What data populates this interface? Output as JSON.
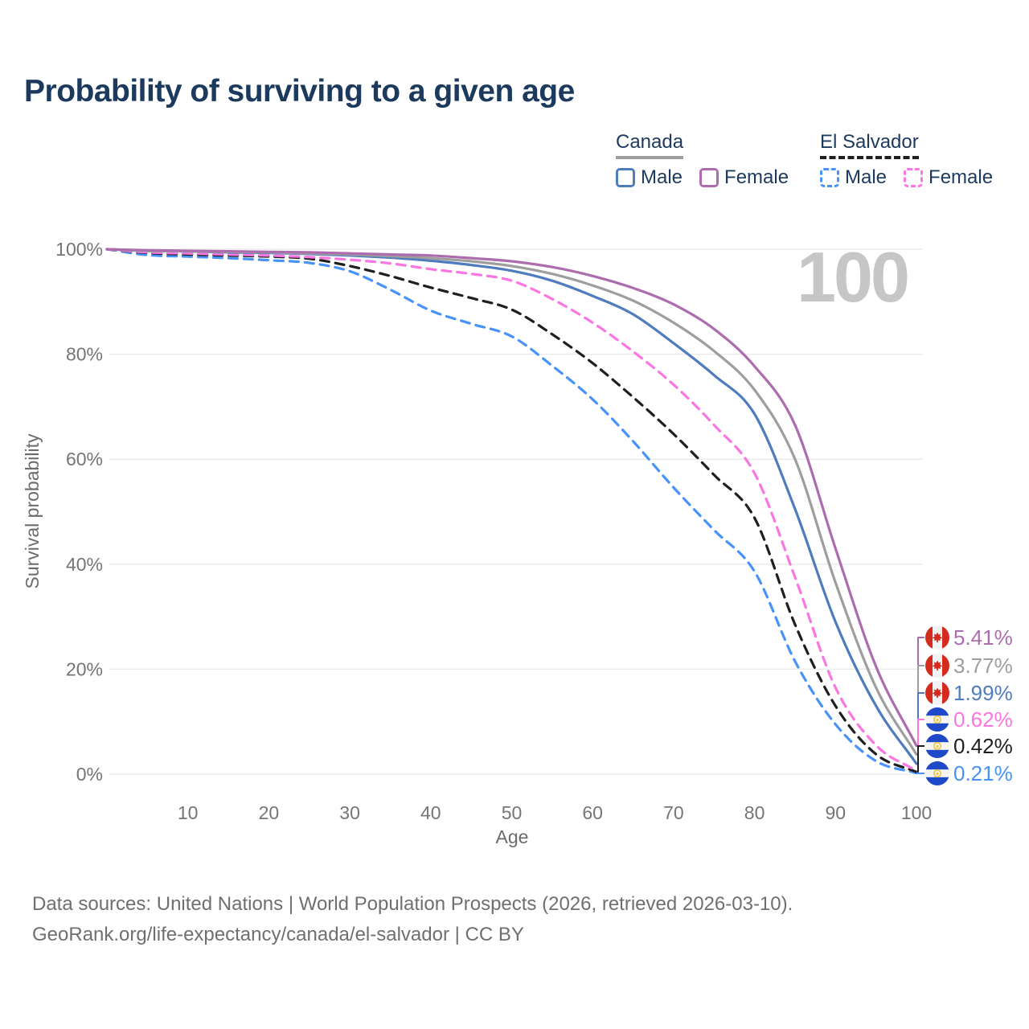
{
  "title": "Probability of surviving to a given age",
  "watermark": "100",
  "legend": {
    "canada": {
      "title": "Canada",
      "male_label": "Male",
      "female_label": "Female"
    },
    "el_salvador": {
      "title": "El Salvador",
      "male_label": "Male",
      "female_label": "Female"
    }
  },
  "axes": {
    "x_label": "Age",
    "y_label": "Survival probability",
    "x_ticks": [
      "10",
      "20",
      "30",
      "40",
      "50",
      "60",
      "70",
      "80",
      "90",
      "100"
    ],
    "y_ticks": [
      "0%",
      "20%",
      "40%",
      "60%",
      "80%",
      "100%"
    ],
    "y_tick_values": [
      0,
      20,
      40,
      60,
      80,
      100
    ]
  },
  "chart_data": {
    "type": "line",
    "title": "Probability of surviving to a given age",
    "xlabel": "Age",
    "ylabel": "Survival probability",
    "xlim": [
      0,
      100
    ],
    "ylim": [
      0,
      100
    ],
    "grid": true,
    "legend_position": "top-right",
    "x": [
      0,
      5,
      10,
      15,
      20,
      25,
      30,
      35,
      40,
      45,
      50,
      55,
      60,
      65,
      70,
      75,
      80,
      85,
      90,
      95,
      100
    ],
    "series": [
      {
        "id": "canada-female",
        "name": "Canada Female",
        "country": "Canada",
        "sex": "Female",
        "color": "#AD6CAE",
        "line_style": "solid",
        "flag_icon": "canada-flag-icon",
        "end_label": "5.41%",
        "values": [
          100,
          99.8,
          99.7,
          99.6,
          99.5,
          99.4,
          99.2,
          99.0,
          98.8,
          98.3,
          97.7,
          96.6,
          94.9,
          92.6,
          89.5,
          84.8,
          77.7,
          66.5,
          43.0,
          20.5,
          5.41
        ]
      },
      {
        "id": "canada-total",
        "name": "Canada Both sexes",
        "country": "Canada",
        "sex": "Both",
        "color": "#9E9E9E",
        "line_style": "solid",
        "flag_icon": "canada-flag-icon",
        "end_label": "3.77%",
        "values": [
          100,
          99.7,
          99.6,
          99.5,
          99.4,
          99.2,
          99.0,
          98.7,
          98.3,
          97.7,
          96.8,
          95.3,
          93.1,
          90.2,
          86.0,
          80.6,
          73.2,
          60.0,
          36.5,
          16.5,
          3.77
        ]
      },
      {
        "id": "canada-male",
        "name": "Canada Male",
        "country": "Canada",
        "sex": "Male",
        "color": "#4F7CBE",
        "line_style": "solid",
        "flag_icon": "canada-flag-icon",
        "end_label": "1.99%",
        "values": [
          100,
          99.7,
          99.6,
          99.4,
          99.3,
          99.1,
          98.8,
          98.4,
          97.8,
          97.0,
          95.9,
          94.0,
          91.1,
          87.6,
          82.1,
          76.0,
          68.6,
          50.5,
          29.0,
          13.0,
          1.99
        ]
      },
      {
        "id": "el-salvador-female",
        "name": "El Salvador Female",
        "country": "El Salvador",
        "sex": "Female",
        "color": "#FB76E1",
        "line_style": "dashed",
        "flag_icon": "el-salvador-flag-icon",
        "end_label": "0.62%",
        "values": [
          100,
          99.4,
          99.2,
          99.0,
          98.8,
          98.5,
          98.0,
          97.3,
          96.2,
          95.3,
          94.0,
          90.5,
          86.0,
          80.5,
          74.2,
          66.5,
          57.3,
          37.5,
          16.5,
          5.5,
          0.62
        ]
      },
      {
        "id": "el-salvador-total",
        "name": "El Salvador Both sexes",
        "country": "El Salvador",
        "sex": "Both",
        "color": "#1F1F1F",
        "line_style": "dashed",
        "flag_icon": "el-salvador-flag-icon",
        "end_label": "0.42%",
        "values": [
          100,
          99.3,
          99.0,
          98.8,
          98.6,
          98.2,
          96.8,
          94.9,
          92.7,
          90.7,
          88.5,
          83.8,
          78.3,
          71.8,
          64.8,
          57.0,
          48.8,
          28.5,
          13.0,
          3.8,
          0.42
        ]
      },
      {
        "id": "el-salvador-male",
        "name": "El Salvador Male",
        "country": "El Salvador",
        "sex": "Male",
        "color": "#4793FA",
        "line_style": "dashed",
        "flag_icon": "el-salvador-flag-icon",
        "end_label": "0.21%",
        "values": [
          100,
          98.9,
          98.6,
          98.3,
          97.9,
          97.4,
          95.8,
          92.3,
          88.3,
          85.8,
          83.4,
          77.8,
          71.4,
          63.4,
          54.6,
          46.5,
          38.6,
          21.5,
          9.5,
          2.5,
          0.21
        ]
      }
    ]
  },
  "footer": {
    "line1": "Data sources: United Nations | World Population Prospects (2026, retrieved 2026-03-10).",
    "line2": "GeoRank.org/life-expectancy/canada/el-salvador | CC BY"
  }
}
